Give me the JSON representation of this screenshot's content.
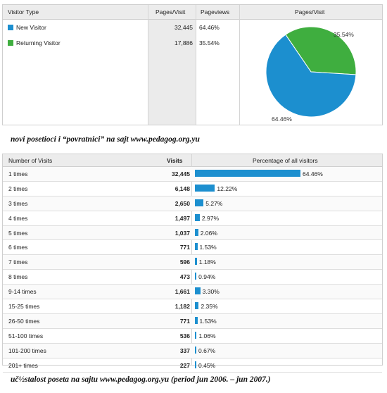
{
  "visitor_type_table": {
    "headers": {
      "visitor_type": "Visitor Type",
      "pages_visit": "Pages/Visit",
      "pageviews": "Pageviews",
      "pie_title": "Pages/Visit"
    },
    "rows": [
      {
        "label": "New Visitor",
        "value": "32,445",
        "percent": "64.46%",
        "color": "#1c8fcf"
      },
      {
        "label": "Returning Visitor",
        "value": "17,886",
        "percent": "35.54%",
        "color": "#3fae3f"
      }
    ]
  },
  "caption1": "novi posetioci i “povratnici” na sajt www.pedagog.org.yu",
  "visits_table": {
    "headers": {
      "number_of_visits": "Number of Visits",
      "visits": "Visits",
      "percentage": "Percentage of all visitors"
    },
    "rows": [
      {
        "label": "1 times",
        "visits": "32,445",
        "percent": "64.46%"
      },
      {
        "label": "2 times",
        "visits": "6,148",
        "percent": "12.22%"
      },
      {
        "label": "3 times",
        "visits": "2,650",
        "percent": "5.27%"
      },
      {
        "label": "4 times",
        "visits": "1,497",
        "percent": "2.97%"
      },
      {
        "label": "5 times",
        "visits": "1,037",
        "percent": "2.06%"
      },
      {
        "label": "6 times",
        "visits": "771",
        "percent": "1.53%"
      },
      {
        "label": "7 times",
        "visits": "596",
        "percent": "1.18%"
      },
      {
        "label": "8 times",
        "visits": "473",
        "percent": "0.94%"
      },
      {
        "label": "9-14 times",
        "visits": "1,661",
        "percent": "3.30%"
      },
      {
        "label": "15-25 times",
        "visits": "1,182",
        "percent": "2.35%"
      },
      {
        "label": "26-50 times",
        "visits": "771",
        "percent": "1.53%"
      },
      {
        "label": "51-100 times",
        "visits": "536",
        "percent": "1.06%"
      },
      {
        "label": "101-200 times",
        "visits": "337",
        "percent": "0.67%"
      },
      {
        "label": "201+ times",
        "visits": "227",
        "percent": "0.45%"
      }
    ],
    "bar_color": "#1c8fcf"
  },
  "caption2": "uč½stalost poseta na sajtu www.pedagog.org.yu (period jun 2006. – jun 2007.)",
  "chart_data": {
    "type": "pie",
    "title": "Pages/Visit",
    "categories": [
      "New Visitor",
      "Returning Visitor"
    ],
    "values": [
      64.46,
      35.54
    ],
    "colors": [
      "#1c8fcf",
      "#3fae3f"
    ],
    "data_labels": [
      "64.46%",
      "35.54%"
    ]
  }
}
